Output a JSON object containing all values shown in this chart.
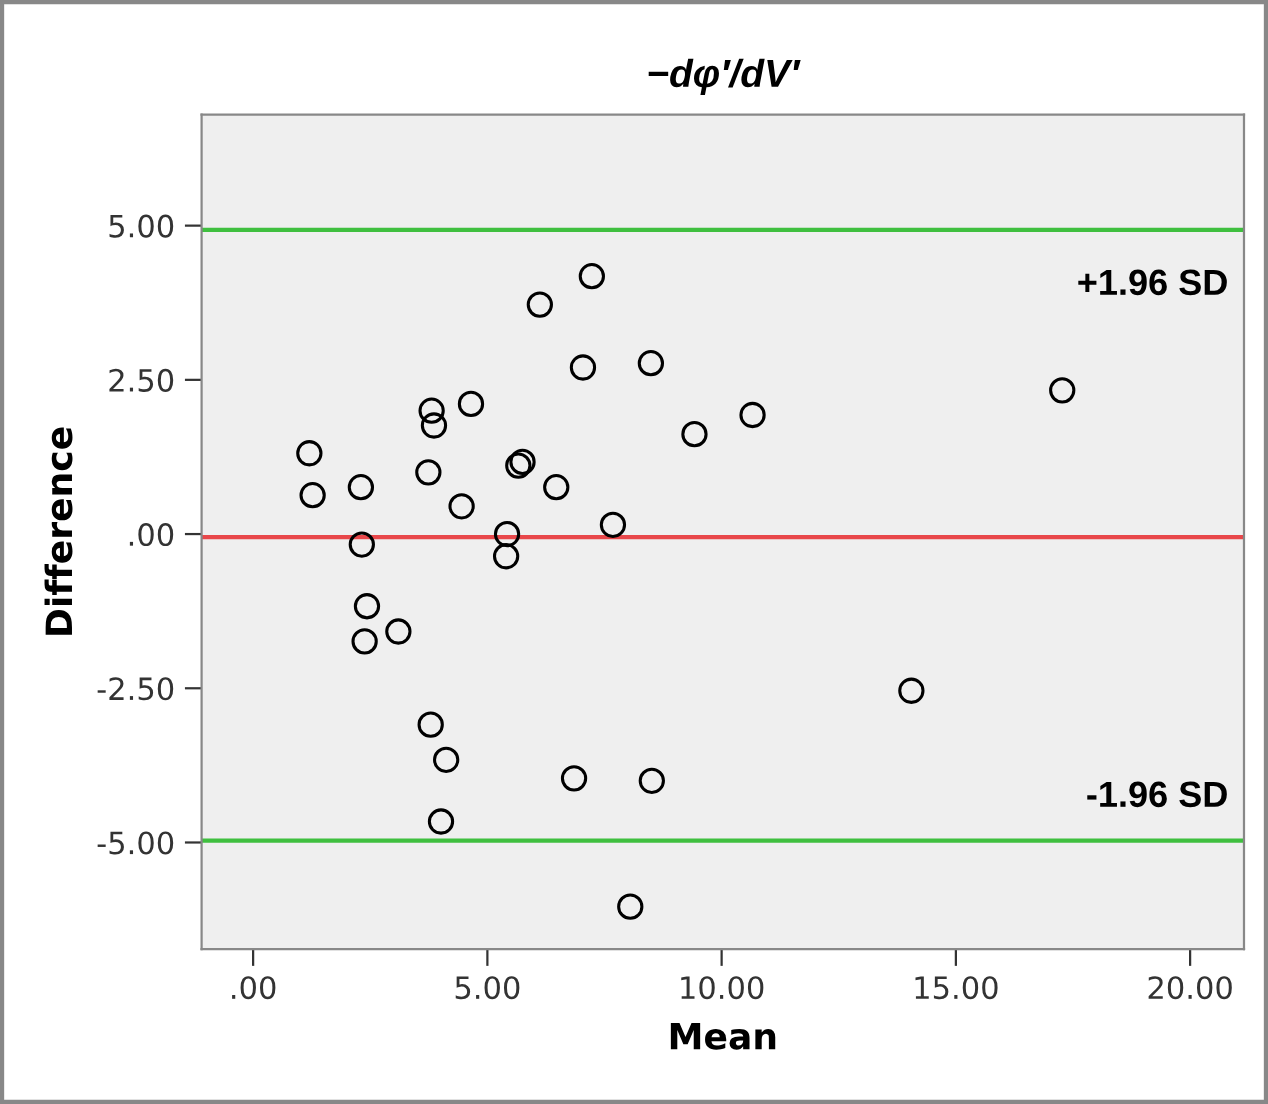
{
  "chart_data": {
    "type": "scatter",
    "title": "−dφ′/dV′",
    "xlabel": "Mean",
    "ylabel": "Difference",
    "x": [
      7.04,
      8.49,
      17.27,
      4.65,
      3.81,
      3.86,
      10.66,
      9.42,
      1.2,
      1.27,
      2.3,
      3.74,
      4.45,
      5.66,
      5.75,
      6.47,
      7.68,
      5.42,
      5.4,
      2.32,
      2.43,
      2.38,
      3.1,
      3.79,
      4.12,
      4.01,
      6.85,
      8.51,
      14.05,
      8.05,
      6.12,
      7.23
    ],
    "values": [
      2.7,
      2.77,
      2.33,
      2.11,
      2.0,
      1.76,
      1.93,
      1.62,
      1.31,
      0.63,
      0.76,
      1.0,
      0.45,
      1.11,
      1.17,
      0.76,
      0.15,
      0.0,
      -0.36,
      -0.17,
      -1.17,
      -1.74,
      -1.58,
      -3.09,
      -3.66,
      -4.66,
      -3.96,
      -4.0,
      -2.54,
      -6.04,
      3.72,
      4.18
    ],
    "color": "#000000",
    "marker": "circle",
    "grid": false,
    "legend": false,
    "xlim": [
      -1.1,
      21.15
    ],
    "ylim": [
      -6.73,
      6.8
    ],
    "xticks": [
      {
        "value": 0,
        "label": ".00"
      },
      {
        "value": 5,
        "label": "5.00"
      },
      {
        "value": 10,
        "label": "10.00"
      },
      {
        "value": 15,
        "label": "15.00"
      },
      {
        "value": 20,
        "label": "20.00"
      }
    ],
    "yticks": [
      {
        "value": -5,
        "label": "-5.00"
      },
      {
        "value": -2.5,
        "label": "-2.50"
      },
      {
        "value": 0,
        "label": ".00"
      },
      {
        "value": 2.5,
        "label": "2.50"
      },
      {
        "value": 5,
        "label": "5.00"
      }
    ],
    "ref_lines": [
      {
        "axis": "y",
        "value": 4.93,
        "label": "+1.96 SD",
        "color": "#3fbf3f"
      },
      {
        "axis": "y",
        "value": -0.05,
        "label": null,
        "color": "#e8474a"
      },
      {
        "axis": "y",
        "value": -4.97,
        "label": "-1.96 SD",
        "color": "#3fbf3f"
      }
    ]
  }
}
